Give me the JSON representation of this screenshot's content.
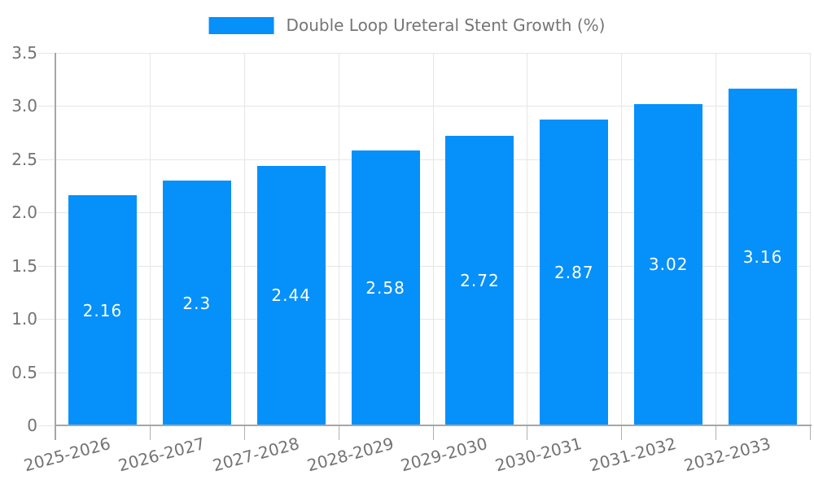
{
  "legend": {
    "label": "Double Loop Ureteral Stent Growth (%)"
  },
  "colors": {
    "bar": "#0690fa",
    "grid": "#e6e6e6",
    "axis": "#a6a6a6",
    "tick_stub": "#b0b0b0",
    "tick_label": "#737373",
    "value_label": "#ffffff",
    "background": "#ffffff"
  },
  "chart_data": {
    "type": "bar",
    "title": "",
    "xlabel": "",
    "ylabel": "",
    "categories": [
      "2025-2026",
      "2026-2027",
      "2027-2028",
      "2028-2029",
      "2029-2030",
      "2030-2031",
      "2031-2032",
      "2032-2033"
    ],
    "series": [
      {
        "name": "Double Loop Ureteral Stent Growth (%)",
        "values": [
          2.16,
          2.3,
          2.44,
          2.58,
          2.72,
          2.87,
          3.02,
          3.16
        ]
      }
    ],
    "bar_labels": [
      "2.16",
      "2.3",
      "2.44",
      "2.58",
      "2.72",
      "2.87",
      "3.02",
      "3.16"
    ],
    "ylim": [
      0,
      3.5
    ],
    "ytick_values": [
      0,
      0.5,
      1,
      1.5,
      2,
      2.5,
      3,
      3.5
    ],
    "ytick_labels": [
      "0",
      "0.5",
      "1.0",
      "1.5",
      "2.0",
      "2.5",
      "3.0",
      "3.5"
    ],
    "xtick_rotation_deg": -15,
    "grid": true,
    "legend_position": "top-center"
  }
}
